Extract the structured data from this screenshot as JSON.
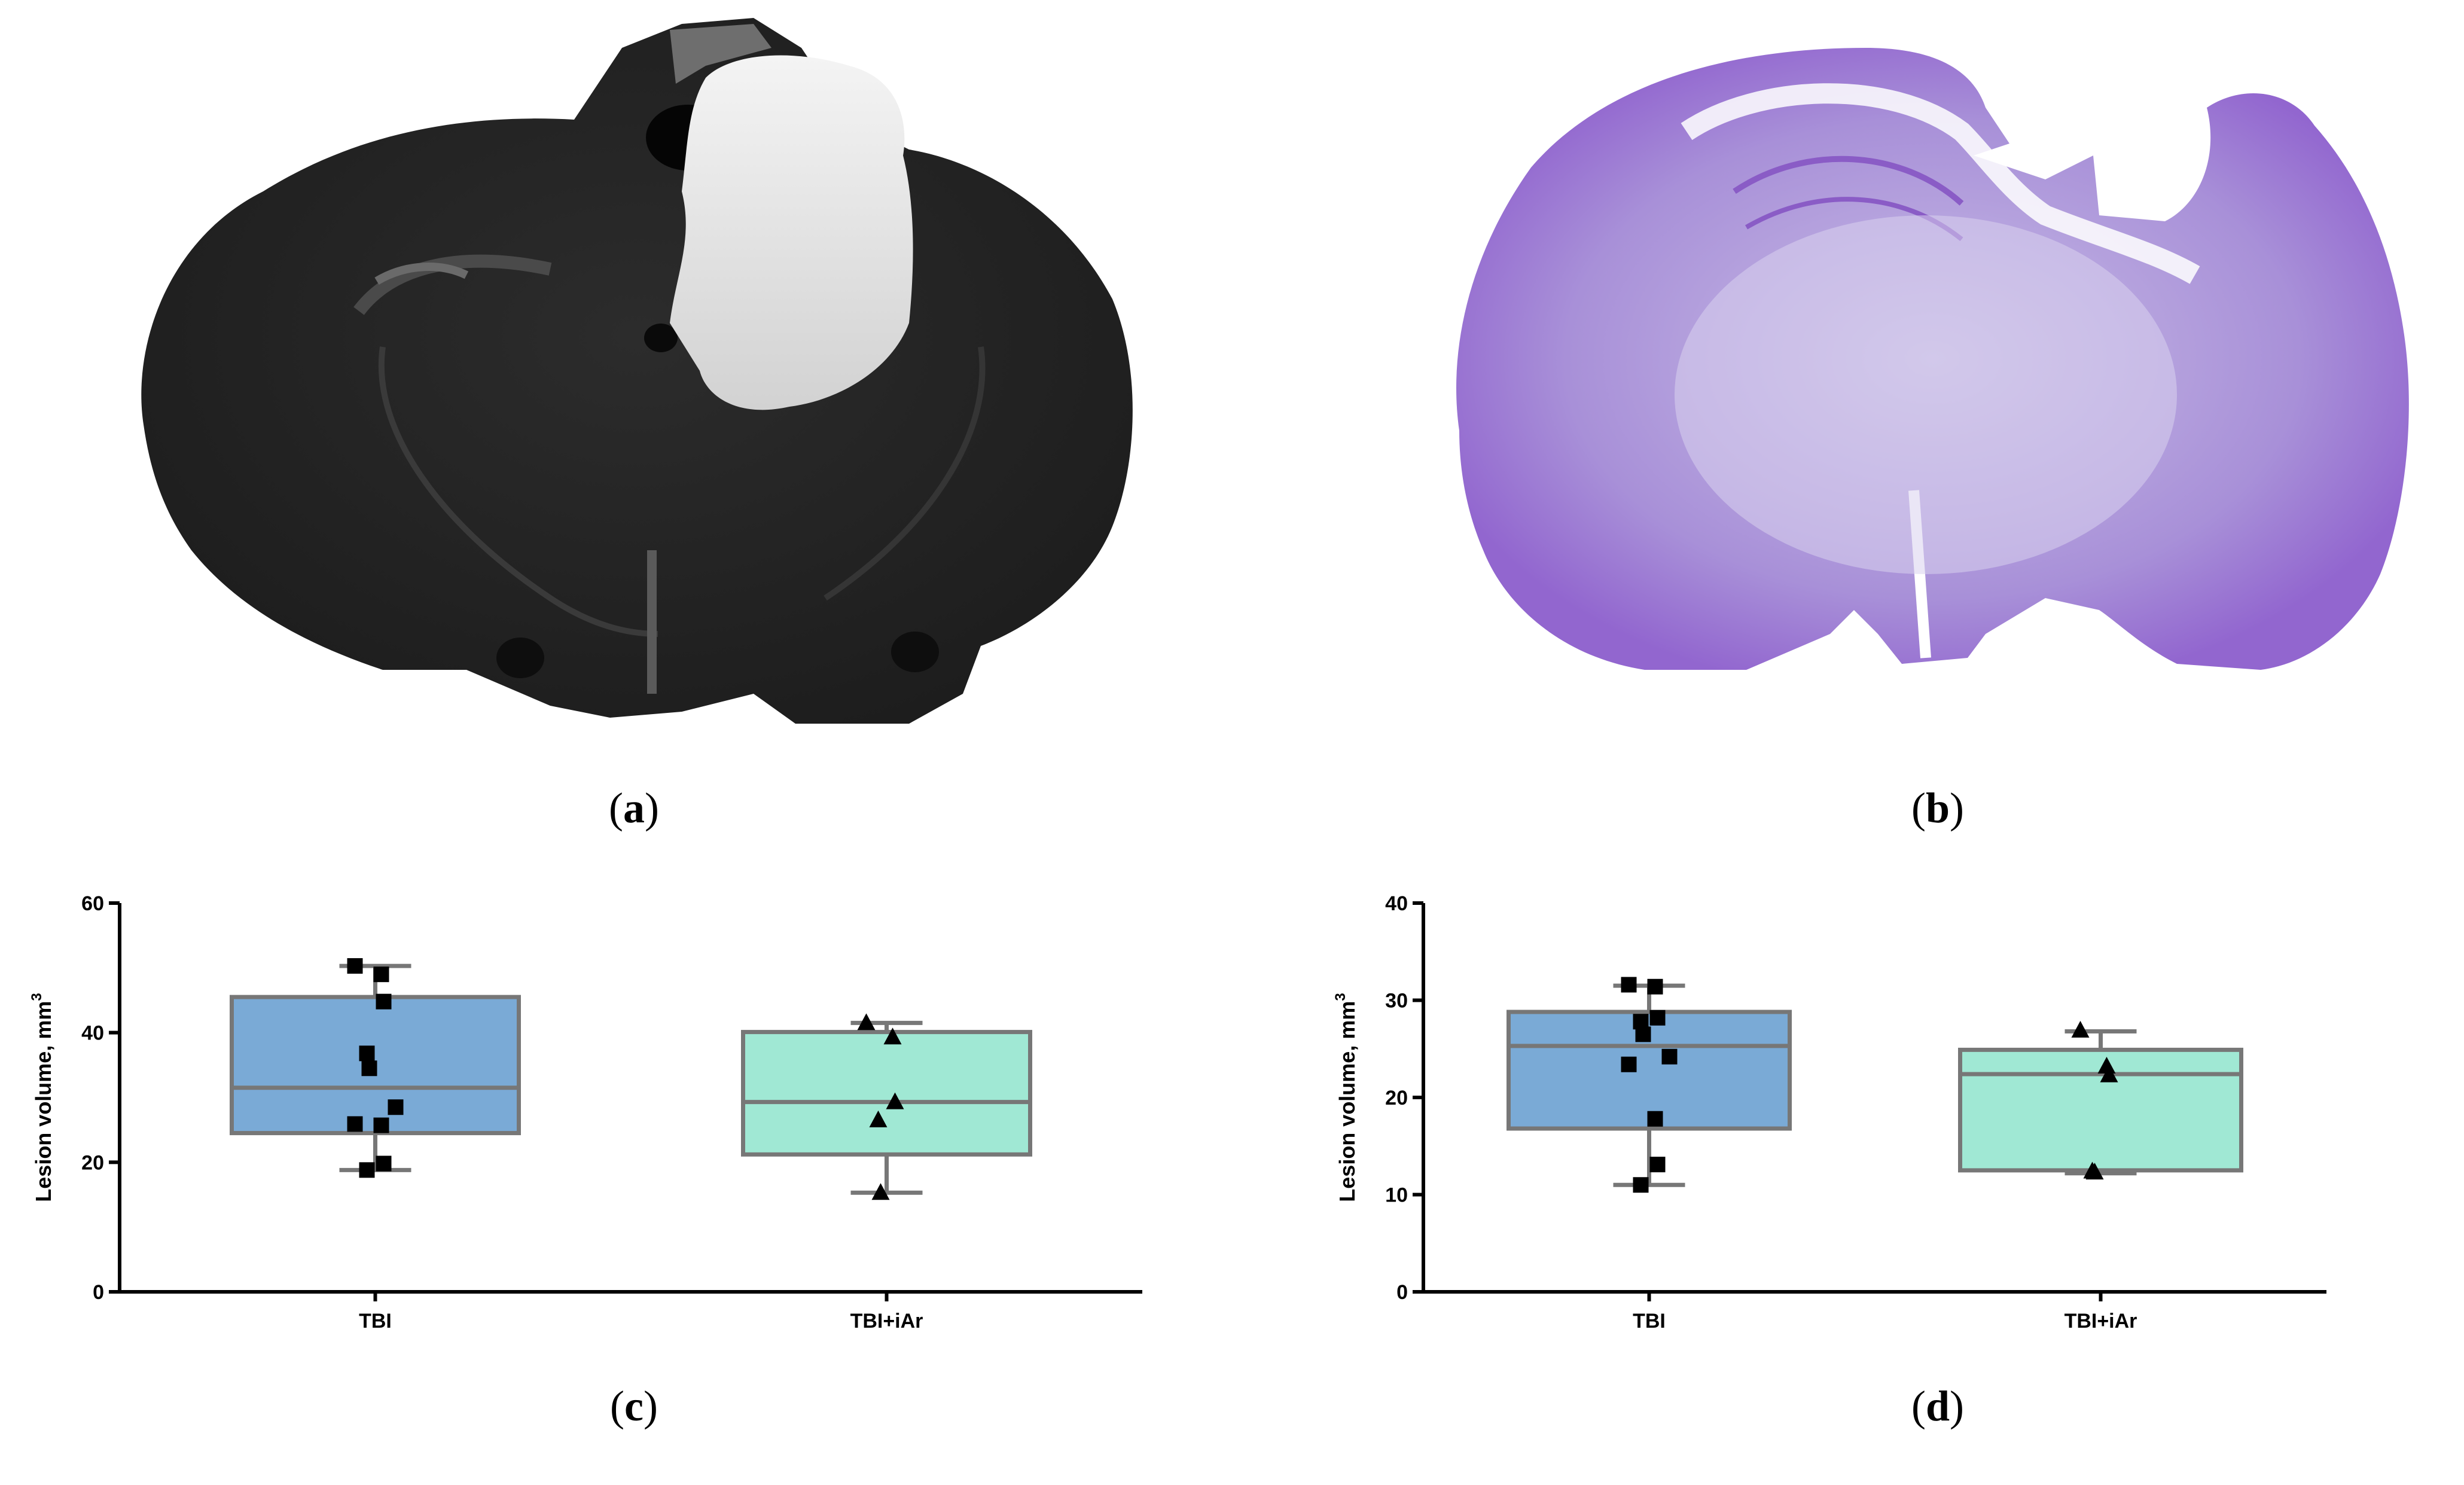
{
  "captions": {
    "a": {
      "open": "(",
      "letter": "a",
      "close": ")"
    },
    "b": {
      "open": "(",
      "letter": "b",
      "close": ")"
    },
    "c": {
      "open": "(",
      "letter": "c",
      "close": ")"
    },
    "d": {
      "open": "(",
      "letter": "d",
      "close": ")"
    }
  },
  "chart_data": [
    {
      "type": "box",
      "panel": "c",
      "ylabel": "Lesion volume, mm",
      "ylabel_superscript": "3",
      "ylim": [
        0,
        60
      ],
      "yticks": [
        "0",
        "20",
        "40",
        "60"
      ],
      "categories": [
        "TBI",
        "TBI+iAr"
      ],
      "series": [
        {
          "category": "TBI",
          "color": "#7aaad6",
          "marker": "square",
          "whisker_low": 18.8,
          "q1": 24.5,
          "median": 31.5,
          "q3": 45.5,
          "whisker_high": 50.3,
          "points": [
            50.3,
            49.0,
            44.8,
            36.8,
            34.5,
            28.5,
            25.9,
            25.7,
            19.8,
            18.8
          ]
        },
        {
          "category": "TBI+iAr",
          "color": "#a0e8d4",
          "marker": "triangle",
          "whisker_low": 15.3,
          "q1": 21.2,
          "median": 29.3,
          "q3": 40.1,
          "whisker_high": 41.5,
          "points": [
            41.5,
            39.3,
            29.3,
            26.5,
            15.3
          ]
        }
      ]
    },
    {
      "type": "box",
      "panel": "d",
      "ylabel": "Lesion volume, mm",
      "ylabel_superscript": "3",
      "ylim": [
        0,
        40
      ],
      "yticks": [
        "0",
        "10",
        "20",
        "30",
        "40"
      ],
      "categories": [
        "TBI",
        "TBI+iAr"
      ],
      "series": [
        {
          "category": "TBI",
          "color": "#7aaad6",
          "marker": "square",
          "whisker_low": 11.0,
          "q1": 16.8,
          "median": 25.3,
          "q3": 28.8,
          "whisker_high": 31.5,
          "points": [
            31.6,
            31.4,
            28.2,
            27.8,
            26.5,
            24.2,
            23.4,
            17.8,
            13.1,
            11.0
          ]
        },
        {
          "category": "TBI+iAr",
          "color": "#a0e8d4",
          "marker": "triangle",
          "whisker_low": 12.2,
          "q1": 12.5,
          "median": 22.4,
          "q3": 24.9,
          "whisker_high": 26.8,
          "points": [
            26.9,
            23.2,
            22.3,
            12.4,
            12.3
          ]
        }
      ]
    }
  ]
}
